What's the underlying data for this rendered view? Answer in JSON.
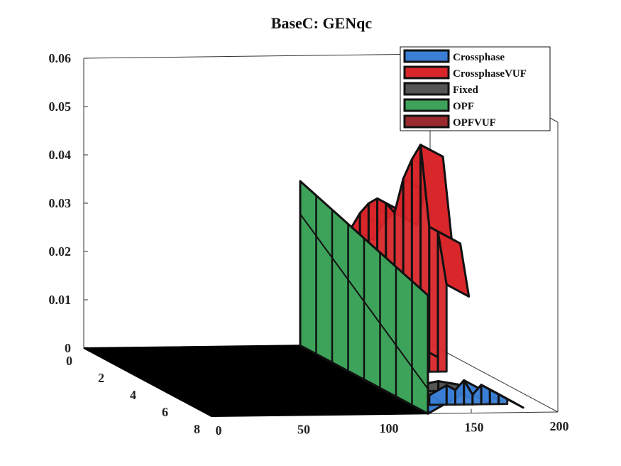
{
  "chart_data": {
    "type": "surface3d",
    "title": "BaseC: GENqc",
    "xlabel": "",
    "ylabel": "",
    "zlabel": "",
    "xlim": [
      0,
      200
    ],
    "ylim": [
      0,
      8
    ],
    "zlim": [
      0,
      0.06
    ],
    "x_ticks": [
      "0",
      "50",
      "100",
      "150",
      "200"
    ],
    "y_ticks": [
      "0",
      "2",
      "4",
      "6",
      "8"
    ],
    "z_ticks": [
      "0",
      "0.01",
      "0.02",
      "0.03",
      "0.04",
      "0.05",
      "0.06"
    ],
    "legend_position": "top-right",
    "series": [
      {
        "name": "Crossphase",
        "color": "#3a7fd5",
        "x": [
          125,
          135,
          145,
          150,
          155,
          160,
          165,
          170,
          175,
          180
        ],
        "y_index": 8,
        "values": [
          0.0,
          0.002,
          0.004,
          0.003,
          0.005,
          0.002,
          0.004,
          0.003,
          0.002,
          0.001
        ]
      },
      {
        "name": "CrossphaseVUF",
        "color": "#d9262b",
        "x": [
          125,
          130,
          135,
          140,
          145,
          150,
          155,
          160,
          165,
          170,
          175,
          180
        ],
        "y_index": 4,
        "values": [
          0.03,
          0.033,
          0.035,
          0.036,
          0.035,
          0.033,
          0.04,
          0.044,
          0.047,
          0.03,
          0.029,
          0.018
        ]
      },
      {
        "name": "Fixed",
        "color": "#555555",
        "x": [
          125,
          140,
          155,
          170,
          180
        ],
        "y_index": 6,
        "values": [
          0.0,
          0.001,
          0.002,
          0.001,
          0.0
        ]
      },
      {
        "name": "OPF",
        "color": "#3da35a",
        "x": [
          125,
          125
        ],
        "y_index": 0,
        "values": [
          0.0,
          0.034
        ]
      },
      {
        "name": "OPFVUF",
        "color": "#9b2a2e",
        "x": [
          125,
          140,
          155,
          170,
          180
        ],
        "y_index": 2,
        "values": [
          0.0,
          0.003,
          0.006,
          0.004,
          0.002
        ]
      }
    ]
  }
}
